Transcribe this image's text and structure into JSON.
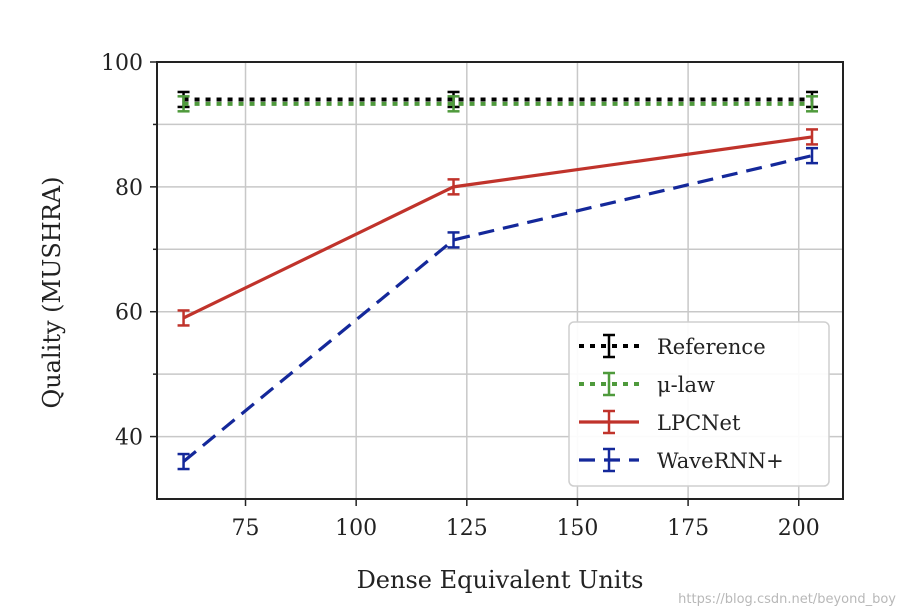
{
  "chart_data": {
    "type": "line",
    "title": "",
    "xlabel": "Dense Equivalent Units",
    "ylabel": "Quality (MUSHRA)",
    "xlim": [
      55,
      210
    ],
    "ylim": [
      30,
      100
    ],
    "xticks": [
      75,
      100,
      125,
      150,
      175,
      200
    ],
    "yticks": [
      40,
      60,
      80,
      100
    ],
    "grid": true,
    "legend_position": "lower-right",
    "series": [
      {
        "name": "Reference",
        "color": "#000000",
        "style": "dotted",
        "x": [
          61,
          122,
          203
        ],
        "y": [
          94,
          94,
          94
        ],
        "err": [
          1.2,
          1.2,
          1.2
        ]
      },
      {
        "name": "μ-law",
        "color": "#4f9a3c",
        "style": "dotted",
        "x": [
          61,
          122,
          203
        ],
        "y": [
          93.3,
          93.3,
          93.3
        ],
        "err": [
          1.2,
          1.2,
          1.2
        ]
      },
      {
        "name": "LPCNet",
        "color": "#c0332b",
        "style": "solid",
        "x": [
          61,
          122,
          203
        ],
        "y": [
          59,
          80,
          88
        ],
        "err": [
          1.2,
          1.2,
          1.2
        ]
      },
      {
        "name": "WaveRNN+",
        "color": "#14289a",
        "style": "dashed",
        "x": [
          61,
          122,
          203
        ],
        "y": [
          36,
          71.5,
          85
        ],
        "err": [
          1.2,
          1.2,
          1.2
        ]
      }
    ]
  },
  "watermark": "https://blog.csdn.net/beyond_boy"
}
